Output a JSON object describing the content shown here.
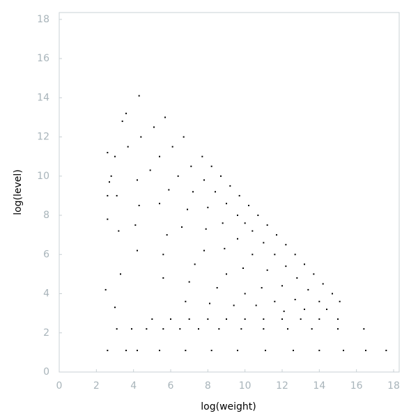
{
  "chart_data": {
    "type": "scatter",
    "x_label": "log(weight)",
    "y_label": "log(level)",
    "color": "#000000",
    "xlim": [
      0,
      18.3
    ],
    "ylim": [
      0,
      18.35
    ],
    "xticks": [
      0,
      2,
      4,
      6,
      8,
      10,
      12,
      14,
      16,
      18
    ],
    "yticks": [
      0,
      2,
      4,
      6,
      8,
      10,
      12,
      14,
      16,
      18
    ],
    "x": [
      5.7,
      6.7,
      7.7,
      8.2,
      8.7,
      9.2,
      9.7,
      10.2,
      10.7,
      11.2,
      11.7,
      12.2,
      12.7,
      13.2,
      13.7,
      14.2,
      14.7,
      15.1,
      5.1,
      6.1,
      7.1,
      7.8,
      8.4,
      9.0,
      9.6,
      10.0,
      10.4,
      11.0,
      11.6,
      12.2,
      12.8,
      13.4,
      14.0,
      14.4,
      4.4,
      5.4,
      6.4,
      7.2,
      8.0,
      8.8,
      9.6,
      10.4,
      11.2,
      12.0,
      12.7,
      13.2,
      3.7,
      4.9,
      5.9,
      6.9,
      7.9,
      8.9,
      9.9,
      10.9,
      11.6,
      12.1,
      3.0,
      4.2,
      5.4,
      6.6,
      7.8,
      9.0,
      10.0,
      10.6,
      2.8,
      4.3,
      5.8,
      7.3,
      8.5,
      9.4,
      2.6,
      4.1,
      5.6,
      7.0,
      8.1,
      2.6,
      4.2,
      5.6,
      6.8,
      2.6,
      2.7,
      3.1,
      3.2,
      3.3,
      2.5,
      3.0,
      3.6,
      4.3,
      3.4,
      5.0,
      6.0,
      7.0,
      8.0,
      9.0,
      10.0,
      11.0,
      12.0,
      13.0,
      14.0,
      15.0,
      3.1,
      3.9,
      4.7,
      5.6,
      6.5,
      7.5,
      8.6,
      9.8,
      11.0,
      12.3,
      13.6,
      15.0,
      16.4,
      2.6,
      3.6,
      4.2,
      5.4,
      6.8,
      8.2,
      9.6,
      11.1,
      12.6,
      14.0,
      15.3,
      16.5,
      17.6
    ],
    "y": [
      13.0,
      12.0,
      11.0,
      10.5,
      10.0,
      9.5,
      9.0,
      8.5,
      8.0,
      7.5,
      7.0,
      6.5,
      6.0,
      5.5,
      5.0,
      4.5,
      4.0,
      3.6,
      12.5,
      11.5,
      10.5,
      9.8,
      9.2,
      8.6,
      8.0,
      7.6,
      7.2,
      6.6,
      6.0,
      5.4,
      4.8,
      4.2,
      3.6,
      3.2,
      12.0,
      11.0,
      10.0,
      9.2,
      8.4,
      7.6,
      6.8,
      6.0,
      5.2,
      4.4,
      3.7,
      3.2,
      11.5,
      10.3,
      9.3,
      8.3,
      7.3,
      6.3,
      5.3,
      4.3,
      3.6,
      3.1,
      11.0,
      9.8,
      8.6,
      7.4,
      6.2,
      5.0,
      4.0,
      3.4,
      10.0,
      8.5,
      7.0,
      5.5,
      4.3,
      3.4,
      9.0,
      7.5,
      6.0,
      4.6,
      3.5,
      7.8,
      6.2,
      4.8,
      3.6,
      11.2,
      9.7,
      9.0,
      7.2,
      5.0,
      4.2,
      3.3,
      13.2,
      14.1,
      12.8,
      2.7,
      2.7,
      2.7,
      2.7,
      2.7,
      2.7,
      2.7,
      2.7,
      2.7,
      2.7,
      2.7,
      2.2,
      2.2,
      2.2,
      2.2,
      2.2,
      2.2,
      2.2,
      2.2,
      2.2,
      2.2,
      2.2,
      2.2,
      2.2,
      1.1,
      1.1,
      1.1,
      1.1,
      1.1,
      1.1,
      1.1,
      1.1,
      1.1,
      1.1,
      1.1,
      1.1,
      1.1
    ]
  }
}
